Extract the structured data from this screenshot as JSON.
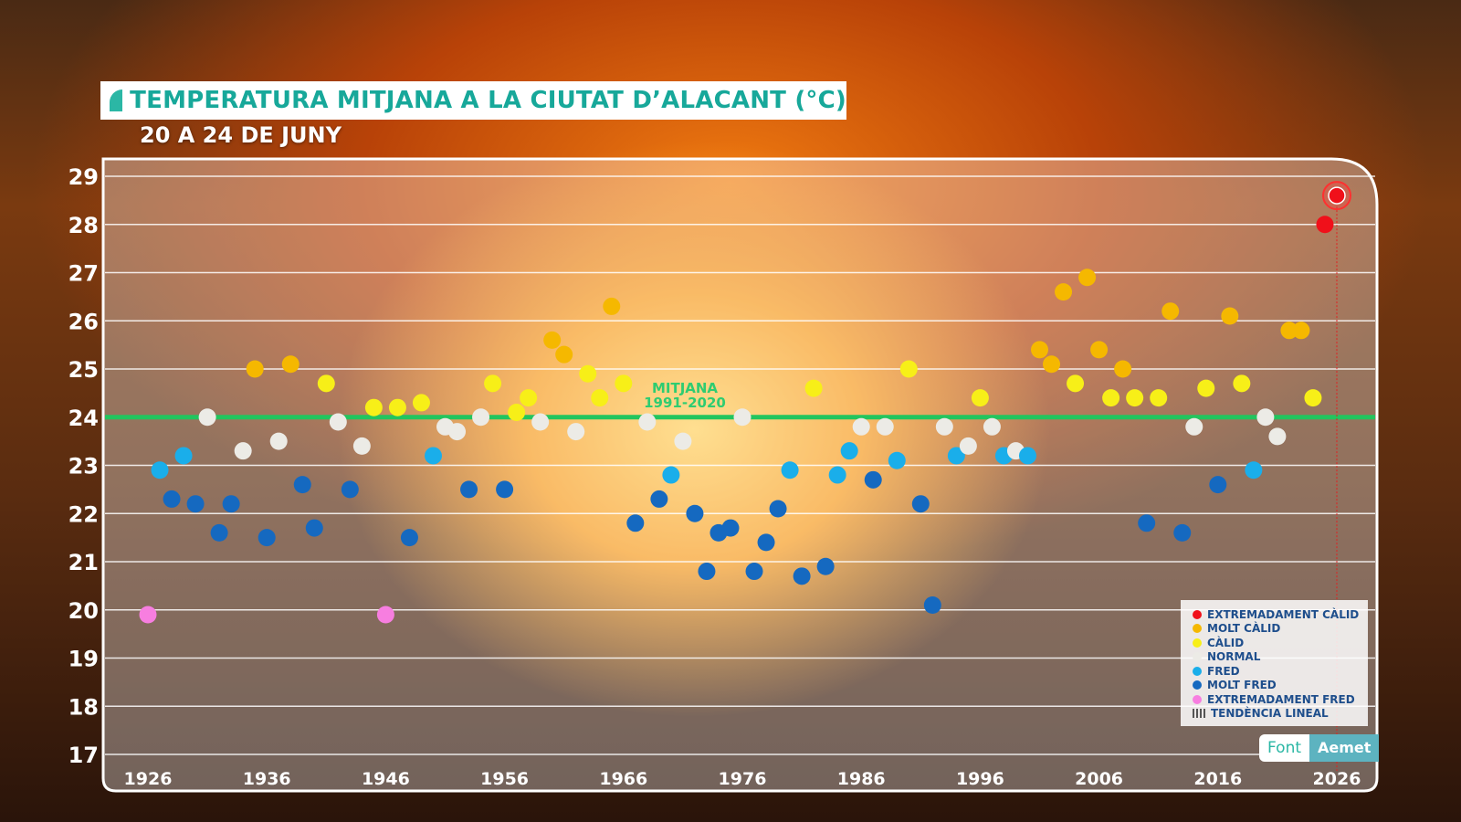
{
  "header": {
    "title": "TEMPERATURA MITJANA A LA CIUTAT D’ALACANT (°C)",
    "subtitle": "20 A 24 DE JUNY"
  },
  "chart_data": {
    "type": "scatter",
    "ylim": [
      17,
      29
    ],
    "xlim": [
      1926,
      2026
    ],
    "yticks": [
      17,
      18,
      19,
      20,
      21,
      22,
      23,
      24,
      25,
      26,
      27,
      28,
      29
    ],
    "xticks": [
      1926,
      1936,
      1946,
      1956,
      1966,
      1976,
      1986,
      1996,
      2006,
      2016,
      2026
    ],
    "grid": true,
    "legend_position": "bottom-right",
    "reference_line": {
      "value": 24.0,
      "label_line1": "MITJANA",
      "label_line2": "1991-2020",
      "color": "#22c55e"
    },
    "highlight_year": 2026,
    "categories": {
      "EC": {
        "label": "EXTREMADAMENT CÀLID",
        "color": "#f0101a"
      },
      "MC": {
        "label": "MOLT CÀLID",
        "color": "#f5b800"
      },
      "C": {
        "label": "CÀLID",
        "color": "#f7ef18"
      },
      "N": {
        "label": "NORMAL",
        "color": "#ecebe6"
      },
      "F": {
        "label": "FRED",
        "color": "#1aaeea"
      },
      "MF": {
        "label": "MOLT FRED",
        "color": "#1569c0"
      },
      "EF": {
        "label": "EXTREMADAMENT FRED",
        "color": "#f77ee0"
      }
    },
    "trend_label": "TENDÈNCIA LINEAL",
    "points": [
      {
        "year": 1926,
        "value": 19.9,
        "cat": "EF"
      },
      {
        "year": 1927,
        "value": 22.9,
        "cat": "F"
      },
      {
        "year": 1928,
        "value": 22.3,
        "cat": "MF"
      },
      {
        "year": 1929,
        "value": 23.2,
        "cat": "F"
      },
      {
        "year": 1930,
        "value": 22.2,
        "cat": "MF"
      },
      {
        "year": 1931,
        "value": 24.0,
        "cat": "N"
      },
      {
        "year": 1932,
        "value": 21.6,
        "cat": "MF"
      },
      {
        "year": 1933,
        "value": 22.2,
        "cat": "MF"
      },
      {
        "year": 1934,
        "value": 23.3,
        "cat": "N"
      },
      {
        "year": 1935,
        "value": 25.0,
        "cat": "MC"
      },
      {
        "year": 1936,
        "value": 21.5,
        "cat": "MF"
      },
      {
        "year": 1937,
        "value": 23.5,
        "cat": "N"
      },
      {
        "year": 1938,
        "value": 25.1,
        "cat": "MC"
      },
      {
        "year": 1939,
        "value": 22.6,
        "cat": "MF"
      },
      {
        "year": 1940,
        "value": 21.7,
        "cat": "MF"
      },
      {
        "year": 1941,
        "value": 24.7,
        "cat": "C"
      },
      {
        "year": 1942,
        "value": 23.9,
        "cat": "N"
      },
      {
        "year": 1943,
        "value": 22.5,
        "cat": "MF"
      },
      {
        "year": 1944,
        "value": 23.4,
        "cat": "N"
      },
      {
        "year": 1945,
        "value": 24.2,
        "cat": "C"
      },
      {
        "year": 1946,
        "value": 19.9,
        "cat": "EF"
      },
      {
        "year": 1947,
        "value": 24.2,
        "cat": "C"
      },
      {
        "year": 1948,
        "value": 21.5,
        "cat": "MF"
      },
      {
        "year": 1949,
        "value": 24.3,
        "cat": "C"
      },
      {
        "year": 1950,
        "value": 23.2,
        "cat": "F"
      },
      {
        "year": 1951,
        "value": 23.8,
        "cat": "N"
      },
      {
        "year": 1952,
        "value": 23.7,
        "cat": "N"
      },
      {
        "year": 1953,
        "value": 22.5,
        "cat": "MF"
      },
      {
        "year": 1954,
        "value": 24.0,
        "cat": "N"
      },
      {
        "year": 1955,
        "value": 24.7,
        "cat": "C"
      },
      {
        "year": 1956,
        "value": 22.5,
        "cat": "MF"
      },
      {
        "year": 1957,
        "value": 24.1,
        "cat": "C"
      },
      {
        "year": 1958,
        "value": 24.4,
        "cat": "C"
      },
      {
        "year": 1959,
        "value": 23.9,
        "cat": "N"
      },
      {
        "year": 1960,
        "value": 25.6,
        "cat": "MC"
      },
      {
        "year": 1961,
        "value": 25.3,
        "cat": "MC"
      },
      {
        "year": 1962,
        "value": 23.7,
        "cat": "N"
      },
      {
        "year": 1963,
        "value": 24.9,
        "cat": "C"
      },
      {
        "year": 1964,
        "value": 24.4,
        "cat": "C"
      },
      {
        "year": 1965,
        "value": 26.3,
        "cat": "MC"
      },
      {
        "year": 1966,
        "value": 24.7,
        "cat": "C"
      },
      {
        "year": 1967,
        "value": 21.8,
        "cat": "MF"
      },
      {
        "year": 1968,
        "value": 23.9,
        "cat": "N"
      },
      {
        "year": 1969,
        "value": 22.3,
        "cat": "MF"
      },
      {
        "year": 1970,
        "value": 22.8,
        "cat": "F"
      },
      {
        "year": 1971,
        "value": 23.5,
        "cat": "N"
      },
      {
        "year": 1972,
        "value": 22.0,
        "cat": "MF"
      },
      {
        "year": 1973,
        "value": 20.8,
        "cat": "MF"
      },
      {
        "year": 1974,
        "value": 21.6,
        "cat": "MF"
      },
      {
        "year": 1975,
        "value": 21.7,
        "cat": "MF"
      },
      {
        "year": 1976,
        "value": 24.0,
        "cat": "N"
      },
      {
        "year": 1977,
        "value": 20.8,
        "cat": "MF"
      },
      {
        "year": 1978,
        "value": 21.4,
        "cat": "MF"
      },
      {
        "year": 1979,
        "value": 22.1,
        "cat": "MF"
      },
      {
        "year": 1980,
        "value": 22.9,
        "cat": "F"
      },
      {
        "year": 1981,
        "value": 20.7,
        "cat": "MF"
      },
      {
        "year": 1982,
        "value": 24.6,
        "cat": "C"
      },
      {
        "year": 1983,
        "value": 20.9,
        "cat": "MF"
      },
      {
        "year": 1984,
        "value": 22.8,
        "cat": "F"
      },
      {
        "year": 1985,
        "value": 23.3,
        "cat": "F"
      },
      {
        "year": 1986,
        "value": 23.8,
        "cat": "N"
      },
      {
        "year": 1987,
        "value": 22.7,
        "cat": "MF"
      },
      {
        "year": 1988,
        "value": 23.8,
        "cat": "N"
      },
      {
        "year": 1989,
        "value": 23.1,
        "cat": "F"
      },
      {
        "year": 1990,
        "value": 25.0,
        "cat": "C"
      },
      {
        "year": 1991,
        "value": 22.2,
        "cat": "MF"
      },
      {
        "year": 1992,
        "value": 20.1,
        "cat": "MF"
      },
      {
        "year": 1993,
        "value": 23.8,
        "cat": "N"
      },
      {
        "year": 1994,
        "value": 23.2,
        "cat": "F"
      },
      {
        "year": 1995,
        "value": 23.4,
        "cat": "N"
      },
      {
        "year": 1996,
        "value": 24.4,
        "cat": "C"
      },
      {
        "year": 1997,
        "value": 23.8,
        "cat": "N"
      },
      {
        "year": 1998,
        "value": 23.2,
        "cat": "F"
      },
      {
        "year": 1999,
        "value": 23.3,
        "cat": "N"
      },
      {
        "year": 2000,
        "value": 23.2,
        "cat": "F"
      },
      {
        "year": 2001,
        "value": 25.4,
        "cat": "MC"
      },
      {
        "year": 2002,
        "value": 25.1,
        "cat": "MC"
      },
      {
        "year": 2003,
        "value": 26.6,
        "cat": "MC"
      },
      {
        "year": 2004,
        "value": 24.7,
        "cat": "C"
      },
      {
        "year": 2005,
        "value": 26.9,
        "cat": "MC"
      },
      {
        "year": 2006,
        "value": 25.4,
        "cat": "MC"
      },
      {
        "year": 2007,
        "value": 24.4,
        "cat": "C"
      },
      {
        "year": 2008,
        "value": 25.0,
        "cat": "MC"
      },
      {
        "year": 2009,
        "value": 24.4,
        "cat": "C"
      },
      {
        "year": 2010,
        "value": 21.8,
        "cat": "MF"
      },
      {
        "year": 2011,
        "value": 24.4,
        "cat": "C"
      },
      {
        "year": 2012,
        "value": 26.2,
        "cat": "MC"
      },
      {
        "year": 2013,
        "value": 21.6,
        "cat": "MF"
      },
      {
        "year": 2014,
        "value": 23.8,
        "cat": "N"
      },
      {
        "year": 2015,
        "value": 24.6,
        "cat": "C"
      },
      {
        "year": 2016,
        "value": 22.6,
        "cat": "MF"
      },
      {
        "year": 2017,
        "value": 26.1,
        "cat": "MC"
      },
      {
        "year": 2018,
        "value": 24.7,
        "cat": "C"
      },
      {
        "year": 2019,
        "value": 22.9,
        "cat": "F"
      },
      {
        "year": 2020,
        "value": 24.0,
        "cat": "N"
      },
      {
        "year": 2021,
        "value": 23.6,
        "cat": "N"
      },
      {
        "year": 2022,
        "value": 25.8,
        "cat": "MC"
      },
      {
        "year": 2023,
        "value": 25.8,
        "cat": "MC"
      },
      {
        "year": 2024,
        "value": 24.4,
        "cat": "C"
      },
      {
        "year": 2025,
        "value": 28.0,
        "cat": "EC"
      },
      {
        "year": 2026,
        "value": 28.6,
        "cat": "EC"
      }
    ]
  },
  "source": {
    "label": "Font",
    "value": "Aemet"
  }
}
